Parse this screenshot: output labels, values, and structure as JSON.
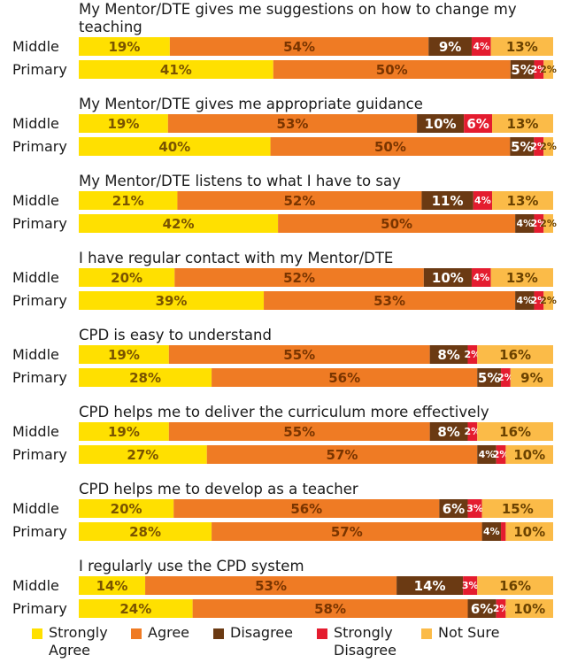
{
  "chart_data": {
    "type": "bar",
    "stacked": true,
    "orientation": "horizontal",
    "legend_position": "bottom",
    "segments": [
      {
        "name": "Strongly Agree",
        "color": "#FFE000",
        "text_color": "#7a5400"
      },
      {
        "name": "Agree",
        "color": "#EF7B24",
        "text_color": "#7a3500"
      },
      {
        "name": "Disagree",
        "color": "#6B3A13",
        "text_color": "#ffffff"
      },
      {
        "name": "Strongly Disagree",
        "color": "#E41C2F",
        "text_color": "#ffffff"
      },
      {
        "name": "Not Sure",
        "color": "#FBBB48",
        "text_color": "#6b4200"
      }
    ],
    "questions": [
      {
        "title": "My Mentor/DTE gives me suggestions on how to change my teaching",
        "title_lines": [
          "My Mentor/DTE gives me suggestions on how to change my",
          "teaching"
        ],
        "rows": [
          {
            "group": "Middle",
            "values": [
              19,
              54,
              9,
              4,
              13
            ],
            "labels": [
              "19%",
              "54%",
              "9%",
              "4%",
              "13%"
            ]
          },
          {
            "group": "Primary",
            "values": [
              41,
              50,
              5,
              2,
              2
            ],
            "labels": [
              "41%",
              "50%",
              "5%",
              "2%",
              "2%"
            ]
          }
        ]
      },
      {
        "title": "My Mentor/DTE gives me appropriate guidance",
        "title_lines": [
          "My Mentor/DTE gives me appropriate guidance"
        ],
        "rows": [
          {
            "group": "Middle",
            "values": [
              19,
              53,
              10,
              6,
              13
            ],
            "labels": [
              "19%",
              "53%",
              "10%",
              "6%",
              "13%"
            ]
          },
          {
            "group": "Primary",
            "values": [
              40,
              50,
              5,
              2,
              2
            ],
            "labels": [
              "40%",
              "50%",
              "5%",
              "2%",
              "2%"
            ]
          }
        ]
      },
      {
        "title": "My Mentor/DTE listens to what I have to say",
        "title_lines": [
          "My Mentor/DTE listens to what I have to say"
        ],
        "rows": [
          {
            "group": "Middle",
            "values": [
              21,
              52,
              11,
              4,
              13
            ],
            "labels": [
              "21%",
              "52%",
              "11%",
              "4%",
              "13%"
            ]
          },
          {
            "group": "Primary",
            "values": [
              42,
              50,
              4,
              2,
              2
            ],
            "labels": [
              "42%",
              "50%",
              "4%",
              "2%",
              "2%"
            ]
          }
        ]
      },
      {
        "title": "I have regular contact with my Mentor/DTE",
        "title_lines": [
          "I have regular contact with my Mentor/DTE"
        ],
        "rows": [
          {
            "group": "Middle",
            "values": [
              20,
              52,
              10,
              4,
              13
            ],
            "labels": [
              "20%",
              "52%",
              "10%",
              "4%",
              "13%"
            ]
          },
          {
            "group": "Primary",
            "values": [
              39,
              53,
              4,
              2,
              2
            ],
            "labels": [
              "39%",
              "53%",
              "4%",
              "2%",
              "2%"
            ]
          }
        ]
      },
      {
        "title": "CPD is easy to understand",
        "title_lines": [
          "CPD is easy to understand"
        ],
        "rows": [
          {
            "group": "Middle",
            "values": [
              19,
              55,
              8,
              2,
              16
            ],
            "labels": [
              "19%",
              "55%",
              "8%",
              "2%",
              "16%"
            ]
          },
          {
            "group": "Primary",
            "values": [
              28,
              56,
              5,
              2,
              9
            ],
            "labels": [
              "28%",
              "56%",
              "5%",
              "2%",
              "9%"
            ]
          }
        ]
      },
      {
        "title": "CPD helps me to deliver the curriculum more effectively",
        "title_lines": [
          "CPD helps me to deliver the curriculum more effectively"
        ],
        "rows": [
          {
            "group": "Middle",
            "values": [
              19,
              55,
              8,
              2,
              16
            ],
            "labels": [
              "19%",
              "55%",
              "8%",
              "2%",
              "16%"
            ]
          },
          {
            "group": "Primary",
            "values": [
              27,
              57,
              4,
              2,
              10
            ],
            "labels": [
              "27%",
              "57%",
              "4%",
              "2%",
              "10%"
            ]
          }
        ]
      },
      {
        "title": "CPD helps me to develop as a teacher",
        "title_lines": [
          "CPD helps me to develop as a teacher"
        ],
        "rows": [
          {
            "group": "Middle",
            "values": [
              20,
              56,
              6,
              3,
              15
            ],
            "labels": [
              "20%",
              "56%",
              "6%",
              "3%",
              "15%"
            ]
          },
          {
            "group": "Primary",
            "values": [
              28,
              57,
              4,
              1,
              10
            ],
            "labels": [
              "28%",
              "57%",
              "4%",
              "",
              "10%"
            ]
          }
        ]
      },
      {
        "title": "I regularly use the CPD system",
        "title_lines": [
          "I regularly use the CPD system"
        ],
        "rows": [
          {
            "group": "Middle",
            "values": [
              14,
              53,
              14,
              3,
              16
            ],
            "labels": [
              "14%",
              "53%",
              "14%",
              "3%",
              "16%"
            ]
          },
          {
            "group": "Primary",
            "values": [
              24,
              58,
              6,
              2,
              10
            ],
            "labels": [
              "24%",
              "58%",
              "6%",
              "2%",
              "10%"
            ]
          }
        ]
      }
    ]
  },
  "legend": {
    "items": [
      {
        "label": "Strongly Agree",
        "lines": [
          "Strongly",
          "Agree"
        ],
        "color": "#FFE000"
      },
      {
        "label": "Agree",
        "lines": [
          "Agree"
        ],
        "color": "#EF7B24"
      },
      {
        "label": "Disagree",
        "lines": [
          "Disagree"
        ],
        "color": "#6B3A13"
      },
      {
        "label": "Strongly Disagree",
        "lines": [
          "Strongly",
          "Disagree"
        ],
        "color": "#E41C2F"
      },
      {
        "label": "Not Sure",
        "lines": [
          "Not Sure"
        ],
        "color": "#FBBB48"
      }
    ]
  }
}
